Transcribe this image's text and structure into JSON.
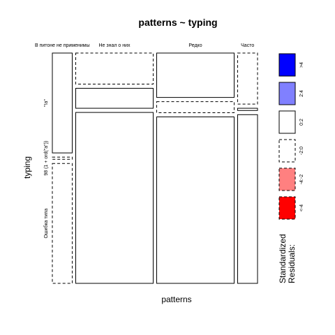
{
  "chart_data": {
    "type": "mosaic",
    "title": "patterns ~ typing",
    "xlabel": "patterns",
    "ylabel": "typing",
    "columns": [
      "В питоне не применимы",
      "Не знал о них",
      "Редко",
      "Часто"
    ],
    "rows": [
      "\"!a\"",
      "98 (1 + ord(\"a\"))",
      "Ошибка типа"
    ],
    "column_proportions": [
      0.09,
      0.35,
      0.35,
      0.09
    ],
    "cells": [
      [
        0.45,
        0.01,
        0.54
      ],
      [
        0.14,
        0.09,
        0.77
      ],
      [
        0.2,
        0.05,
        0.75
      ],
      [
        0.23,
        0.01,
        0.76
      ]
    ],
    "residual_bins": [
      [
        ">4",
        "<-4"
      ],
      [
        ">4",
        "2:4",
        "0:2",
        "-2:0",
        "-4:-2",
        "<-4"
      ]
    ],
    "cell_bins": [
      [
        "0:2",
        "-2:0",
        "-2:0"
      ],
      [
        "-2:0",
        "0:2",
        "0:2"
      ],
      [
        "0:2",
        "-2:0",
        "0:2"
      ],
      [
        "-2:0",
        "0:2",
        "0:2"
      ]
    ],
    "legend": {
      "title": "Standardized\nResiduals:",
      "title_line1": "Standardized",
      "title_line2": "Residuals:",
      "entries": [
        {
          "label": ">4",
          "fill": "#0000ff",
          "dashed": false
        },
        {
          "label": "2:4",
          "fill": "#8080ff",
          "dashed": false
        },
        {
          "label": "0:2",
          "fill": "#ffffff",
          "dashed": false
        },
        {
          "label": "-2:0",
          "fill": "#ffffff",
          "dashed": true
        },
        {
          "label": "-4:-2",
          "fill": "#ff8080",
          "dashed": true
        },
        {
          "label": "<-4",
          "fill": "#ff0000",
          "dashed": true
        }
      ]
    }
  }
}
